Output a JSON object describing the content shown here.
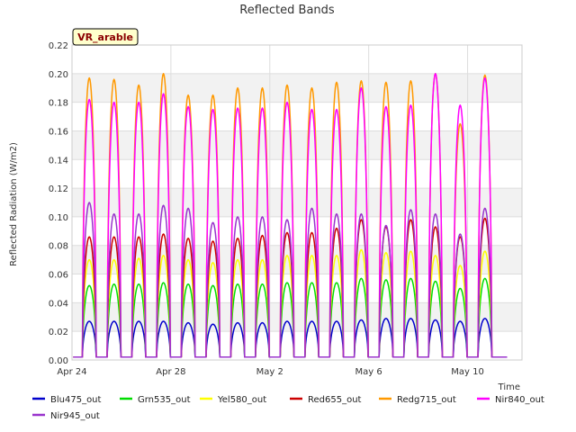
{
  "chart_data": {
    "type": "line",
    "title": "Reflected Bands",
    "xlabel": "Time",
    "ylabel": "Reflected Radiation (W/m2)",
    "badge": "VR_arable",
    "ylim": [
      0,
      0.22
    ],
    "yticks": [
      "0.00",
      "0.02",
      "0.04",
      "0.06",
      "0.08",
      "0.10",
      "0.12",
      "0.14",
      "0.16",
      "0.18",
      "0.20",
      "0.22"
    ],
    "xticks": [
      {
        "label": "Apr 24",
        "day": 0
      },
      {
        "label": "Apr 28",
        "day": 4
      },
      {
        "label": "May 2",
        "day": 8
      },
      {
        "label": "May 6",
        "day": 12
      },
      {
        "label": "May 10",
        "day": 16
      }
    ],
    "xlim_days": [
      0,
      18.2
    ],
    "grid": true,
    "legend_position": "bottom",
    "days": [
      0.7,
      1.7,
      2.7,
      3.7,
      4.7,
      5.7,
      6.7,
      7.7,
      8.7,
      9.7,
      10.7,
      11.7,
      12.7,
      13.7,
      14.7,
      15.7,
      16.7
    ],
    "series": [
      {
        "name": "Blu475_out",
        "color": "#0000cc",
        "daily_peaks": [
          0.027,
          0.027,
          0.027,
          0.027,
          0.026,
          0.025,
          0.026,
          0.026,
          0.027,
          0.027,
          0.027,
          0.028,
          0.029,
          0.029,
          0.028,
          0.027,
          0.029
        ]
      },
      {
        "name": "Grn535_out",
        "color": "#00dd00",
        "daily_peaks": [
          0.052,
          0.053,
          0.053,
          0.054,
          0.053,
          0.052,
          0.053,
          0.053,
          0.054,
          0.054,
          0.054,
          0.057,
          0.056,
          0.057,
          0.055,
          0.05,
          0.057
        ]
      },
      {
        "name": "Yel580_out",
        "color": "#ffff00",
        "daily_peaks": [
          0.07,
          0.07,
          0.071,
          0.073,
          0.07,
          0.068,
          0.07,
          0.07,
          0.073,
          0.073,
          0.073,
          0.077,
          0.075,
          0.076,
          0.073,
          0.066,
          0.076
        ]
      },
      {
        "name": "Red655_out",
        "color": "#cc0000",
        "daily_peaks": [
          0.086,
          0.086,
          0.086,
          0.088,
          0.085,
          0.083,
          0.085,
          0.087,
          0.089,
          0.089,
          0.092,
          0.098,
          0.093,
          0.098,
          0.093,
          0.086,
          0.099
        ]
      },
      {
        "name": "Redg715_out",
        "color": "#ff9900",
        "daily_peaks": [
          0.197,
          0.196,
          0.192,
          0.2,
          0.185,
          0.185,
          0.19,
          0.19,
          0.192,
          0.19,
          0.194,
          0.195,
          0.194,
          0.195,
          0.2,
          0.165,
          0.199
        ]
      },
      {
        "name": "Nir840_out",
        "color": "#ff00ff",
        "daily_peaks": [
          0.182,
          0.18,
          0.18,
          0.186,
          0.177,
          0.175,
          0.176,
          0.176,
          0.18,
          0.175,
          0.175,
          0.19,
          0.177,
          0.178,
          0.2,
          0.178,
          0.197
        ]
      },
      {
        "name": "Nir945_out",
        "color": "#9933cc",
        "daily_peaks": [
          0.11,
          0.102,
          0.102,
          0.108,
          0.106,
          0.096,
          0.1,
          0.1,
          0.098,
          0.106,
          0.102,
          0.102,
          0.094,
          0.105,
          0.102,
          0.088,
          0.106
        ]
      }
    ]
  }
}
